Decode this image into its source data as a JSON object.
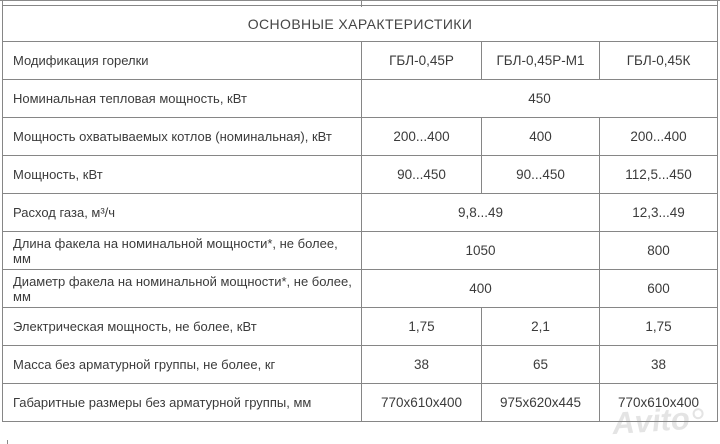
{
  "page": {
    "background_color": "#ffffff",
    "border_color": "#868686",
    "text_color": "#3b3b3b"
  },
  "table": {
    "title": "ОСНОВНЫЕ ХАРАКТЕРИСТИКИ",
    "rows": [
      {
        "label": "Модификация горелки",
        "cells": [
          {
            "text": "ГБЛ-0,45Р",
            "span": 1
          },
          {
            "text": "ГБЛ-0,45Р-М1",
            "span": 1
          },
          {
            "text": "ГБЛ-0,45К",
            "span": 1
          }
        ]
      },
      {
        "label": "Номинальная тепловая мощность, кВт",
        "cells": [
          {
            "text": "450",
            "span": 3
          }
        ]
      },
      {
        "label": "Мощность охватываемых котлов (номинальная), кВт",
        "cells": [
          {
            "text": "200...400",
            "span": 1
          },
          {
            "text": "400",
            "span": 1
          },
          {
            "text": "200...400",
            "span": 1
          }
        ]
      },
      {
        "label": "Мощность, кВт",
        "cells": [
          {
            "text": "90...450",
            "span": 1
          },
          {
            "text": "90...450",
            "span": 1
          },
          {
            "text": "112,5...450",
            "span": 1
          }
        ]
      },
      {
        "label": "Расход газа, м³/ч",
        "cells": [
          {
            "text": "9,8...49",
            "span": 2
          },
          {
            "text": "12,3...49",
            "span": 1
          }
        ]
      },
      {
        "label": "Длина факела на номинальной мощности*, не более, мм",
        "cells": [
          {
            "text": "1050",
            "span": 2
          },
          {
            "text": "800",
            "span": 1
          }
        ]
      },
      {
        "label": "Диаметр факела на номинальной мощности*, не более, мм",
        "cells": [
          {
            "text": "400",
            "span": 2
          },
          {
            "text": "600",
            "span": 1
          }
        ]
      },
      {
        "label": "Электрическая мощность, не более, кВт",
        "cells": [
          {
            "text": "1,75",
            "span": 1
          },
          {
            "text": "2,1",
            "span": 1
          },
          {
            "text": "1,75",
            "span": 1
          }
        ]
      },
      {
        "label": "Масса без арматурной группы, не более, кг",
        "cells": [
          {
            "text": "38",
            "span": 1
          },
          {
            "text": "65",
            "span": 1
          },
          {
            "text": "38",
            "span": 1
          }
        ]
      },
      {
        "label": "Габаритные размеры без арматурной группы, мм",
        "cells": [
          {
            "text": "770x610x400",
            "span": 1
          },
          {
            "text": "975x620x445",
            "span": 1
          },
          {
            "text": "770x610x400",
            "span": 1
          }
        ]
      }
    ]
  },
  "watermark": {
    "text": "Avito"
  }
}
